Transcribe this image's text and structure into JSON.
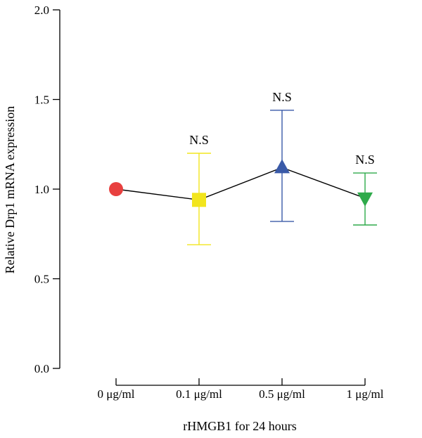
{
  "chart_data": {
    "type": "scatter",
    "title": "",
    "xlabel": "rHMGB1 for 24 hours",
    "ylabel": "Relative Drp1 mRNA expression",
    "ylim": [
      0,
      2.0
    ],
    "yticks": [
      "0.0",
      "0.5",
      "1.0",
      "1.5",
      "2.0"
    ],
    "categories": [
      "0 μg/ml",
      "0.1 μg/ml",
      "0.5 μg/ml",
      "1 μg/ml"
    ],
    "points": [
      {
        "category": "0 μg/ml",
        "value": 1.0,
        "err_low": 1.0,
        "err_high": 1.0,
        "marker": "circle",
        "color": "#e8403f",
        "annotation": ""
      },
      {
        "category": "0.1 μg/ml",
        "value": 0.94,
        "err_low": 0.69,
        "err_high": 1.2,
        "marker": "square",
        "color": "#f2e51d",
        "annotation": "N.S"
      },
      {
        "category": "0.5 μg/ml",
        "value": 1.12,
        "err_low": 0.82,
        "err_high": 1.44,
        "marker": "triangle-up",
        "color": "#3a5aa8",
        "annotation": "N.S"
      },
      {
        "category": "1 μg/ml",
        "value": 0.95,
        "err_low": 0.8,
        "err_high": 1.09,
        "marker": "triangle-down",
        "color": "#2eaa4a",
        "annotation": "N.S"
      }
    ],
    "connected": true,
    "grid": false,
    "legend": "none"
  }
}
